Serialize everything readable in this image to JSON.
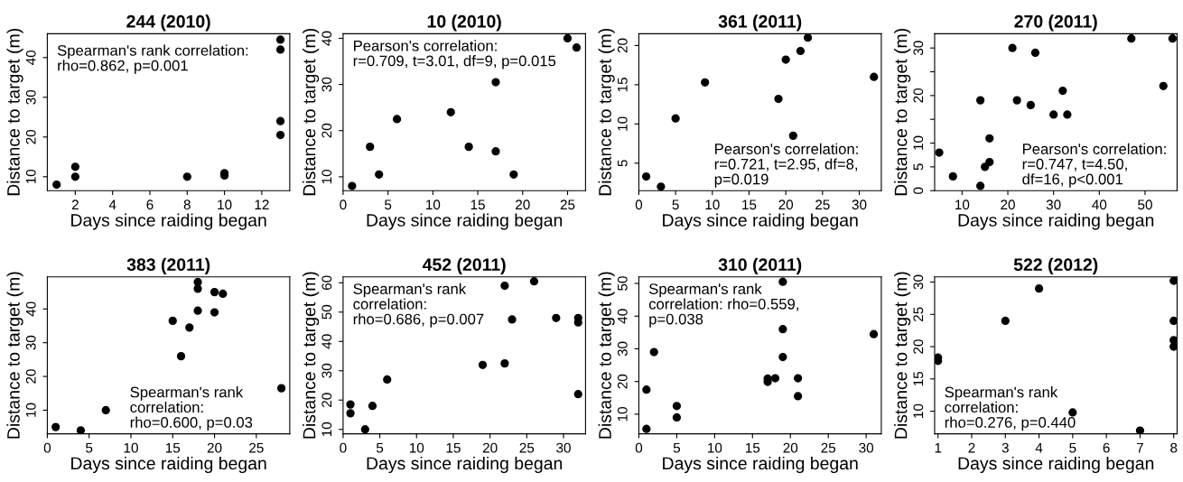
{
  "chart_data": [
    {
      "type": "scatter",
      "title": "244 (2010)",
      "xlabel": "Days since raiding began",
      "ylabel": "Distance to target (m)",
      "annotations": [
        "Spearman's rank correlation:\nrho=0.862, p=0.001"
      ],
      "marker": "circle",
      "x": [
        1,
        2,
        2,
        8,
        10,
        10,
        13,
        13,
        13,
        13
      ],
      "values": [
        8,
        10,
        12.5,
        10,
        10.3,
        10.9,
        44.5,
        42,
        24,
        20.5
      ],
      "color": "#000000",
      "xlim": [
        0.5,
        13.5
      ],
      "ylim": [
        6.5,
        46
      ],
      "xticks": [
        2,
        4,
        6,
        8,
        10,
        12
      ],
      "yticks": [
        10,
        20,
        30,
        40
      ]
    },
    {
      "type": "scatter",
      "title": "10 (2010)",
      "xlabel": "Days since raiding began",
      "ylabel": "Distance to target (m)",
      "annotations": [
        "Pearson's correlation:\nr=0.709, t=3.01, df=9, p=0.015"
      ],
      "marker": "circle",
      "x": [
        1,
        3,
        4,
        6,
        12,
        14,
        17,
        17,
        19,
        25,
        26
      ],
      "values": [
        8,
        16.5,
        10.5,
        22.5,
        24,
        16.5,
        30.5,
        15.5,
        10.5,
        40,
        38
      ],
      "color": "#000000",
      "xlim": [
        0,
        27
      ],
      "ylim": [
        7,
        41
      ],
      "xticks": [
        0,
        5,
        10,
        15,
        20,
        25
      ],
      "yticks": [
        10,
        20,
        30,
        40
      ]
    },
    {
      "type": "scatter",
      "title": "361 (2011)",
      "xlabel": "Days since raiding began",
      "ylabel": "Distance to target (m)",
      "annotations": [
        "Pearson's correlation:\nr=0.721, t=2.95, df=8,\np=0.019"
      ],
      "marker": "circle",
      "x": [
        1,
        3,
        5,
        9,
        19,
        20,
        21,
        22,
        23,
        32
      ],
      "values": [
        3.3,
        2,
        10.7,
        15.3,
        13.2,
        18.2,
        8.5,
        19.3,
        21,
        16
      ],
      "color": "#000000",
      "xlim": [
        0,
        33
      ],
      "ylim": [
        1.5,
        21.5
      ],
      "xticks": [
        0,
        5,
        10,
        15,
        20,
        25,
        30
      ],
      "yticks": [
        5,
        10,
        15,
        20
      ]
    },
    {
      "type": "scatter",
      "title": "270 (2011)",
      "xlabel": "Days since raiding began",
      "ylabel": "Distance to target (m)",
      "annotations": [
        "Pearson's correlation:\nr=0.747, t=4.50,\ndf=16, p<0.001"
      ],
      "marker": "circle",
      "x": [
        5,
        8,
        14,
        14,
        15,
        16,
        16,
        21,
        22,
        25,
        26,
        30,
        32,
        33,
        47,
        54,
        56
      ],
      "values": [
        8,
        3,
        1,
        19,
        5,
        6,
        11,
        30,
        19,
        18,
        29,
        16,
        21,
        16,
        32,
        22,
        32
      ],
      "color": "#000000",
      "xlim": [
        4,
        57
      ],
      "ylim": [
        0,
        33
      ],
      "xticks": [
        10,
        20,
        30,
        40,
        50
      ],
      "yticks": [
        0,
        5,
        10,
        {
          "value": 15,
          "label": null
        },
        20,
        {
          "value": 25,
          "label": null
        },
        30
      ]
    },
    {
      "type": "scatter",
      "title": "383 (2011)",
      "xlabel": "Days since raiding began",
      "ylabel": "Distance to target (m)",
      "annotations": [
        "Spearman's rank\ncorrelation:\nrho=0.600, p=0.03"
      ],
      "marker": "circle",
      "x": [
        1,
        4,
        7,
        15,
        16,
        17,
        18,
        18,
        18,
        20,
        20,
        21,
        28
      ],
      "values": [
        5,
        4,
        10,
        36.5,
        26,
        34.5,
        48,
        46,
        39.5,
        45,
        39,
        44.5,
        16.5
      ],
      "color": "#000000",
      "xlim": [
        0,
        29
      ],
      "ylim": [
        3,
        49.5
      ],
      "xticks": [
        0,
        5,
        10,
        15,
        20,
        25
      ],
      "yticks": [
        10,
        20,
        30,
        40
      ]
    },
    {
      "type": "scatter",
      "title": "452 (2011)",
      "xlabel": "Days since raiding began",
      "ylabel": "Distance to target (m)",
      "annotations": [
        "Spearman's rank\ncorrelation:\nrho=0.686, p=0.007"
      ],
      "marker": "circle",
      "x": [
        1,
        1,
        3,
        4,
        6,
        19,
        22,
        22,
        23,
        26,
        29,
        32,
        32,
        32
      ],
      "values": [
        18.5,
        15.5,
        10,
        18,
        27,
        32,
        32.5,
        59,
        47.5,
        60.5,
        48,
        48,
        46.5,
        22
      ],
      "color": "#000000",
      "xlim": [
        0,
        33
      ],
      "ylim": [
        8.5,
        62
      ],
      "xticks": [
        0,
        5,
        10,
        15,
        20,
        25,
        30
      ],
      "yticks": [
        10,
        20,
        30,
        40,
        50,
        60
      ]
    },
    {
      "type": "scatter",
      "title": "310 (2011)",
      "xlabel": "Days since raiding began",
      "ylabel": "Distance to target (m)",
      "annotations": [
        "Spearman's rank\ncorrelation: rho=0.559,\np=0.038"
      ],
      "marker": "circle",
      "x": [
        1,
        1,
        2,
        5,
        5,
        17,
        17,
        18,
        19,
        19,
        19,
        21,
        21,
        31
      ],
      "values": [
        5.5,
        17.5,
        29,
        12.5,
        9,
        20.9,
        19.9,
        21,
        50.5,
        36,
        27.5,
        21,
        15.5,
        34.5
      ],
      "color": "#000000",
      "xlim": [
        0,
        32
      ],
      "ylim": [
        4,
        52
      ],
      "xticks": [
        0,
        5,
        10,
        15,
        20,
        25,
        30
      ],
      "yticks": [
        10,
        20,
        30,
        40,
        50
      ]
    },
    {
      "type": "scatter",
      "title": "522 (2012)",
      "xlabel": "Days since raiding began",
      "ylabel": "Distance to target (m)",
      "annotations": [
        "Spearman's rank\ncorrelation:\nrho=0.276, p=0.440"
      ],
      "marker": "circle",
      "x": [
        1,
        1,
        3,
        4,
        5,
        7,
        8,
        8,
        8,
        8
      ],
      "values": [
        18.3,
        17.8,
        24,
        29,
        9.8,
        7,
        30.2,
        24,
        21,
        20
      ],
      "color": "#000000",
      "xlim": [
        0.9,
        8.1
      ],
      "ylim": [
        6.5,
        30.8
      ],
      "xticks": [
        1,
        2,
        3,
        4,
        5,
        6,
        7,
        8
      ],
      "yticks": [
        10,
        15,
        20,
        25,
        30
      ]
    }
  ]
}
